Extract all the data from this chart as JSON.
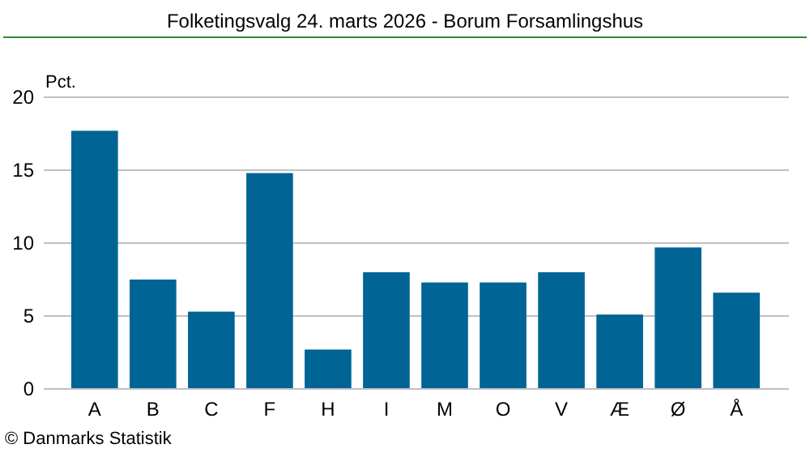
{
  "chart_data": {
    "type": "bar",
    "title": "Folketingsvalg 24. marts 2026 - Borum Forsamlingshus",
    "ylabel": "Pct.",
    "categories": [
      "A",
      "B",
      "C",
      "F",
      "H",
      "I",
      "M",
      "O",
      "V",
      "Æ",
      "Ø",
      "Å"
    ],
    "values": [
      17.7,
      7.5,
      5.3,
      14.8,
      2.7,
      8.0,
      7.3,
      7.3,
      8.0,
      5.1,
      9.7,
      6.6
    ],
    "color": "#006494",
    "ylim": [
      0,
      20
    ],
    "yticks": [
      0,
      5,
      10,
      15,
      20
    ],
    "grid": "y",
    "annotations": [
      "© Danmarks Statistik"
    ]
  }
}
